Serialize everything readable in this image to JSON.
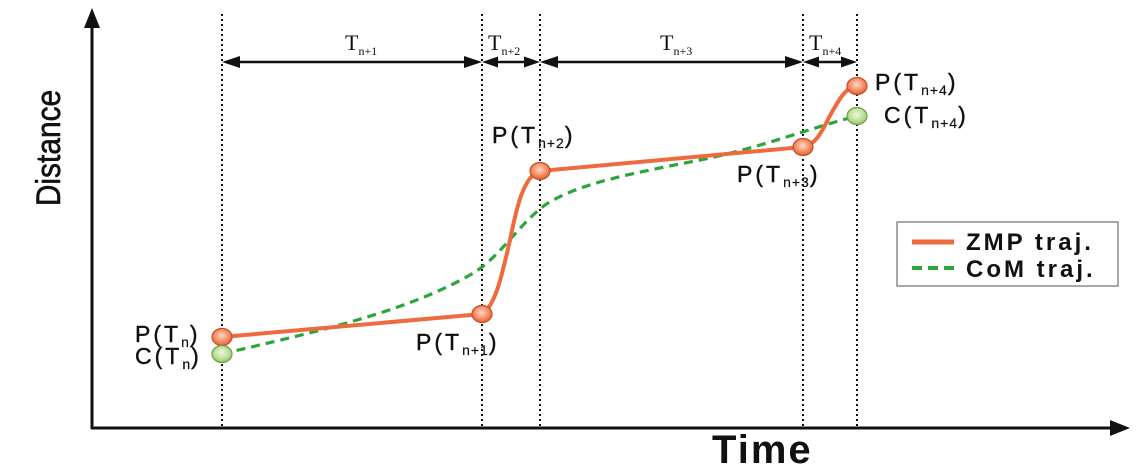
{
  "axes": {
    "y_label": "Distance",
    "x_label": "Time"
  },
  "intervals": [
    {
      "base": "T",
      "sub": "n+1"
    },
    {
      "base": "T",
      "sub": "n+2"
    },
    {
      "base": "T",
      "sub": "n+3"
    },
    {
      "base": "T",
      "sub": "n+4"
    }
  ],
  "zmp_points": [
    {
      "prefix": "P(T",
      "sub": "n",
      "suffix": ")"
    },
    {
      "prefix": "P(T",
      "sub": "n+1",
      "suffix": ")"
    },
    {
      "prefix": "P(T",
      "sub": "n+2",
      "suffix": ")"
    },
    {
      "prefix": "P(T",
      "sub": "n+3",
      "suffix": ")"
    },
    {
      "prefix": "P(T",
      "sub": "n+4",
      "suffix": ")"
    }
  ],
  "com_points": [
    {
      "prefix": "C(T",
      "sub": "n",
      "suffix": ")"
    },
    {
      "prefix": "C(T",
      "sub": "n+4",
      "suffix": ")"
    }
  ],
  "legend": {
    "items": [
      {
        "label": "ZMP traj.",
        "color": "#ee6b40"
      },
      {
        "label": "CoM traj.",
        "color": "#2aa63a"
      }
    ]
  }
}
